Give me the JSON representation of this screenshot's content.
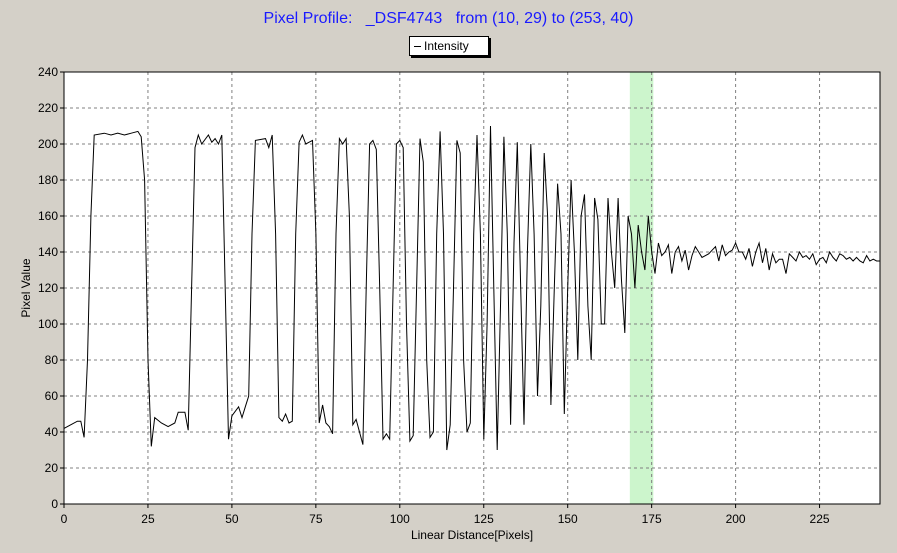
{
  "chart_data": {
    "type": "line",
    "title": "Pixel Profile:   _DSF4743   from (10, 29) to (253, 40)",
    "xlabel": "Linear Distance[Pixels]",
    "ylabel": "Pixel Value",
    "xlim": [
      0,
      243
    ],
    "ylim": [
      0,
      240
    ],
    "x_ticks": [
      "0",
      "25",
      "50",
      "75",
      "100",
      "125",
      "150",
      "175",
      "200",
      "225"
    ],
    "y_ticks": [
      "0",
      "20",
      "40",
      "60",
      "80",
      "100",
      "120",
      "140",
      "160",
      "180",
      "200",
      "220",
      "240"
    ],
    "grid": true,
    "legend_position": "top-center",
    "highlight_band": {
      "x_start": 168.5,
      "x_end": 175.5,
      "color": "#ccf5cc"
    },
    "series": [
      {
        "name": "Intensity",
        "color": "#000000",
        "points": [
          [
            0,
            42
          ],
          [
            2,
            44
          ],
          [
            4,
            46
          ],
          [
            5,
            46
          ],
          [
            6,
            37
          ],
          [
            7,
            80
          ],
          [
            8,
            160
          ],
          [
            9,
            205
          ],
          [
            12,
            206
          ],
          [
            14,
            205
          ],
          [
            16,
            206
          ],
          [
            18,
            205
          ],
          [
            20,
            206
          ],
          [
            22,
            207
          ],
          [
            23,
            204
          ],
          [
            24,
            180
          ],
          [
            25,
            80
          ],
          [
            26,
            32
          ],
          [
            27,
            48
          ],
          [
            29,
            45
          ],
          [
            31,
            43
          ],
          [
            33,
            45
          ],
          [
            34,
            51
          ],
          [
            36,
            51
          ],
          [
            37,
            41
          ],
          [
            38,
            120
          ],
          [
            39,
            198
          ],
          [
            40,
            205
          ],
          [
            41,
            200
          ],
          [
            43,
            205
          ],
          [
            44,
            201
          ],
          [
            45,
            203
          ],
          [
            46,
            200
          ],
          [
            47,
            205
          ],
          [
            48,
            120
          ],
          [
            49,
            36
          ],
          [
            50,
            49
          ],
          [
            52,
            54
          ],
          [
            53,
            48
          ],
          [
            54,
            54
          ],
          [
            55,
            60
          ],
          [
            56,
            150
          ],
          [
            57,
            202
          ],
          [
            60,
            203
          ],
          [
            61,
            198
          ],
          [
            62,
            205
          ],
          [
            63,
            150
          ],
          [
            64,
            48
          ],
          [
            65,
            46
          ],
          [
            66,
            50
          ],
          [
            67,
            45
          ],
          [
            68,
            46
          ],
          [
            69,
            150
          ],
          [
            70,
            201
          ],
          [
            71,
            205
          ],
          [
            72,
            200
          ],
          [
            73,
            201
          ],
          [
            74,
            202
          ],
          [
            75,
            150
          ],
          [
            76,
            45
          ],
          [
            77,
            55
          ],
          [
            78,
            45
          ],
          [
            79,
            43
          ],
          [
            80,
            39
          ],
          [
            81,
            150
          ],
          [
            82,
            203
          ],
          [
            83,
            200
          ],
          [
            84,
            203
          ],
          [
            85,
            160
          ],
          [
            86,
            44
          ],
          [
            87,
            47
          ],
          [
            88,
            40
          ],
          [
            89,
            33
          ],
          [
            90,
            120
          ],
          [
            91,
            200
          ],
          [
            92,
            202
          ],
          [
            93,
            197
          ],
          [
            94,
            120
          ],
          [
            95,
            36
          ],
          [
            96,
            39
          ],
          [
            97,
            36
          ],
          [
            98,
            120
          ],
          [
            99,
            200
          ],
          [
            100,
            202
          ],
          [
            101,
            198
          ],
          [
            102,
            100
          ],
          [
            103,
            35
          ],
          [
            104,
            38
          ],
          [
            105,
            120
          ],
          [
            106,
            203
          ],
          [
            107,
            190
          ],
          [
            108,
            80
          ],
          [
            109,
            37
          ],
          [
            110,
            40
          ],
          [
            111,
            150
          ],
          [
            112,
            207
          ],
          [
            113,
            150
          ],
          [
            114,
            30
          ],
          [
            115,
            44
          ],
          [
            116,
            120
          ],
          [
            117,
            202
          ],
          [
            118,
            195
          ],
          [
            119,
            80
          ],
          [
            120,
            40
          ],
          [
            121,
            45
          ],
          [
            122,
            150
          ],
          [
            123,
            205
          ],
          [
            124,
            150
          ],
          [
            125,
            36
          ],
          [
            126,
            100
          ],
          [
            127,
            210
          ],
          [
            128,
            120
          ],
          [
            129,
            30
          ],
          [
            130,
            110
          ],
          [
            131,
            204
          ],
          [
            132,
            150
          ],
          [
            133,
            44
          ],
          [
            134,
            145
          ],
          [
            135,
            201
          ],
          [
            136,
            120
          ],
          [
            137,
            44
          ],
          [
            138,
            140
          ],
          [
            139,
            200
          ],
          [
            140,
            150
          ],
          [
            141,
            60
          ],
          [
            142,
            110
          ],
          [
            143,
            195
          ],
          [
            144,
            160
          ],
          [
            145,
            55
          ],
          [
            146,
            120
          ],
          [
            147,
            178
          ],
          [
            148,
            150
          ],
          [
            149,
            50
          ],
          [
            150,
            120
          ],
          [
            151,
            180
          ],
          [
            152,
            140
          ],
          [
            153,
            80
          ],
          [
            154,
            160
          ],
          [
            155,
            172
          ],
          [
            156,
            110
          ],
          [
            157,
            80
          ],
          [
            158,
            170
          ],
          [
            159,
            158
          ],
          [
            160,
            100
          ],
          [
            161,
            100
          ],
          [
            162,
            170
          ],
          [
            163,
            140
          ],
          [
            164,
            120
          ],
          [
            165,
            170
          ],
          [
            166,
            125
          ],
          [
            167,
            95
          ],
          [
            168,
            160
          ],
          [
            169,
            150
          ],
          [
            170,
            120
          ],
          [
            171,
            155
          ],
          [
            172,
            140
          ],
          [
            173,
            130
          ],
          [
            174,
            160
          ],
          [
            175,
            140
          ],
          [
            176,
            128
          ],
          [
            177,
            145
          ],
          [
            178,
            138
          ],
          [
            179,
            140
          ],
          [
            180,
            144
          ],
          [
            181,
            128
          ],
          [
            182,
            140
          ],
          [
            183,
            143
          ],
          [
            184,
            135
          ],
          [
            185,
            141
          ],
          [
            186,
            130
          ],
          [
            187,
            138
          ],
          [
            188,
            143
          ],
          [
            189,
            140
          ],
          [
            190,
            137
          ],
          [
            192,
            139
          ],
          [
            193,
            141
          ],
          [
            194,
            143
          ],
          [
            195,
            135
          ],
          [
            196,
            144
          ],
          [
            197,
            138
          ],
          [
            198,
            140
          ],
          [
            199,
            141
          ],
          [
            200,
            145
          ],
          [
            201,
            140
          ],
          [
            202,
            140
          ],
          [
            203,
            136
          ],
          [
            204,
            142
          ],
          [
            205,
            132
          ],
          [
            206,
            140
          ],
          [
            207,
            145
          ],
          [
            208,
            134
          ],
          [
            209,
            142
          ],
          [
            210,
            130
          ],
          [
            211,
            139
          ],
          [
            212,
            134
          ],
          [
            213,
            136
          ],
          [
            214,
            136
          ],
          [
            215,
            128
          ],
          [
            216,
            139
          ],
          [
            217,
            137
          ],
          [
            218,
            135
          ],
          [
            219,
            140
          ],
          [
            220,
            137
          ],
          [
            221,
            138
          ],
          [
            222,
            136
          ],
          [
            223,
            139
          ],
          [
            224,
            133
          ],
          [
            225,
            136
          ],
          [
            226,
            137
          ],
          [
            227,
            134
          ],
          [
            228,
            140
          ],
          [
            229,
            137
          ],
          [
            230,
            135
          ],
          [
            231,
            139
          ],
          [
            232,
            138
          ],
          [
            233,
            136
          ],
          [
            234,
            137
          ],
          [
            235,
            135
          ],
          [
            236,
            137
          ],
          [
            237,
            135
          ],
          [
            238,
            134
          ],
          [
            239,
            138
          ],
          [
            240,
            135
          ],
          [
            241,
            136
          ],
          [
            242,
            135
          ],
          [
            243,
            135
          ]
        ]
      }
    ]
  }
}
